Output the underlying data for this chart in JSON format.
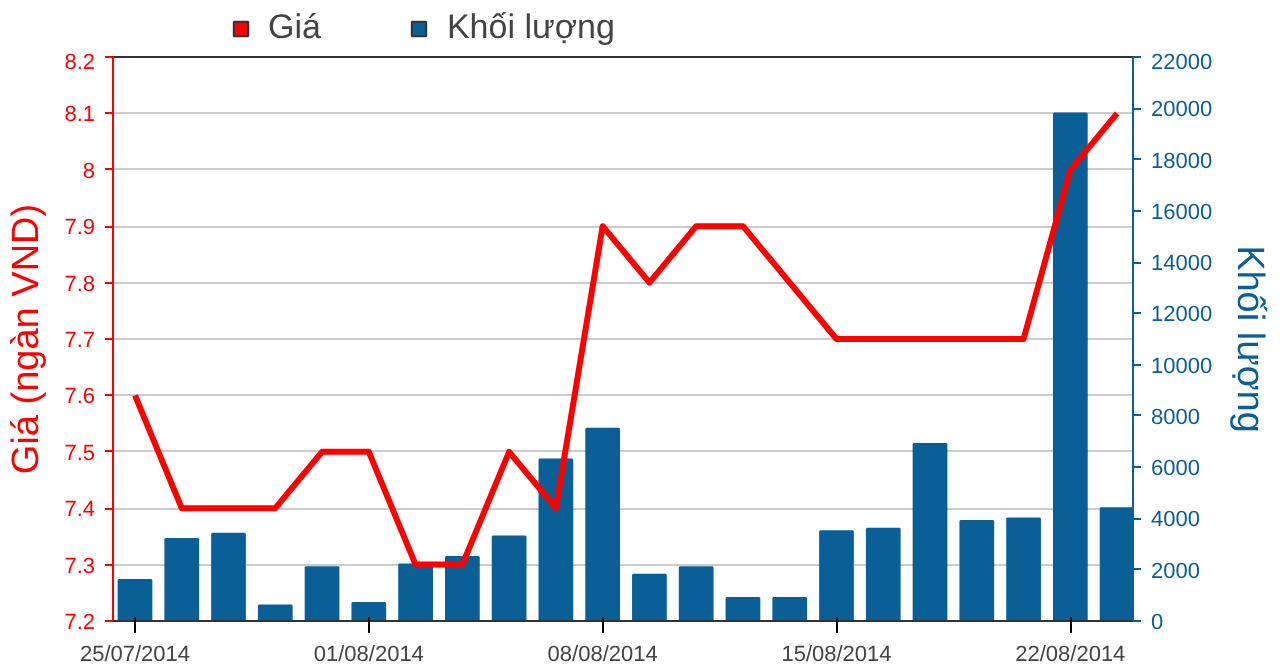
{
  "chart_data": {
    "type": "bar",
    "ylabel": "Giá (ngàn VND)",
    "y2label": "Khối lượng",
    "categories": [
      "25/07/2014",
      null,
      null,
      null,
      null,
      "01/08/2014",
      null,
      null,
      null,
      null,
      "08/08/2014",
      null,
      null,
      null,
      null,
      "15/08/2014",
      null,
      null,
      null,
      null,
      "22/08/2014",
      null
    ],
    "series": [
      {
        "name": "Giá",
        "type": "line",
        "color": "#ff0000",
        "values": [
          7.6,
          7.4,
          7.4,
          7.4,
          7.5,
          7.5,
          7.3,
          7.3,
          7.5,
          7.4,
          7.9,
          7.8,
          7.9,
          7.9,
          7.8,
          7.7,
          7.7,
          7.7,
          7.7,
          7.7,
          8.0,
          8.1
        ]
      },
      {
        "name": "Khối lượng",
        "axis": "y2",
        "color": "#0b5f97",
        "values": [
          1600,
          3200,
          3400,
          600,
          2100,
          700,
          2200,
          2500,
          3300,
          6300,
          7500,
          1800,
          2100,
          900,
          900,
          3500,
          3600,
          6900,
          3900,
          4000,
          19800,
          4400
        ]
      }
    ],
    "ylim": [
      7.2,
      8.2
    ],
    "yticks": [
      7.2,
      7.3,
      7.4,
      7.5,
      7.6,
      7.7,
      7.8,
      7.9,
      8,
      8.1,
      8.2
    ],
    "y2lim": [
      0,
      22000
    ],
    "y2ticks": [
      0,
      2000,
      4000,
      6000,
      8000,
      10000,
      12000,
      14000,
      16000,
      18000,
      20000,
      22000
    ],
    "grid": "y",
    "legend": "top left"
  }
}
